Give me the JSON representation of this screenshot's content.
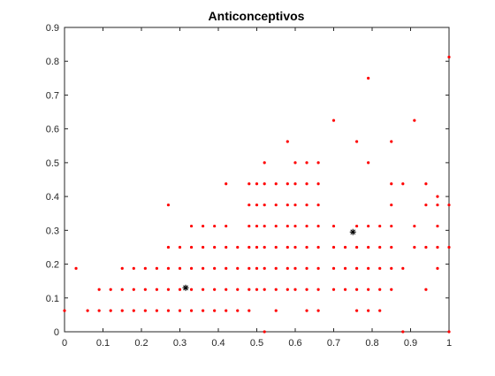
{
  "chart_data": {
    "type": "scatter",
    "title": "Anticonceptivos",
    "xlabel": "",
    "ylabel": "",
    "xlim": [
      0,
      1
    ],
    "ylim": [
      0,
      0.9
    ],
    "xticks": [
      "0",
      "0.1",
      "0.2",
      "0.3",
      "0.4",
      "0.5",
      "0.6",
      "0.7",
      "0.8",
      "0.9",
      "1"
    ],
    "yticks": [
      "0",
      "0.1",
      "0.2",
      "0.3",
      "0.4",
      "0.5",
      "0.6",
      "0.7",
      "0.8",
      "0.9"
    ],
    "grid": false,
    "point_color": "#ff0000",
    "centroid_color": "#000000",
    "series": [
      {
        "marker": "dot",
        "points": [
          [
            0.0,
            0.0625
          ],
          [
            0.03,
            0.1875
          ],
          [
            0.06,
            0.0625
          ],
          [
            0.09,
            0.0625
          ],
          [
            0.09,
            0.125
          ],
          [
            0.12,
            0.0625
          ],
          [
            0.12,
            0.125
          ],
          [
            0.15,
            0.0625
          ],
          [
            0.15,
            0.125
          ],
          [
            0.15,
            0.1875
          ],
          [
            0.18,
            0.0625
          ],
          [
            0.18,
            0.125
          ],
          [
            0.18,
            0.1875
          ],
          [
            0.21,
            0.0625
          ],
          [
            0.21,
            0.125
          ],
          [
            0.21,
            0.1875
          ],
          [
            0.24,
            0.0625
          ],
          [
            0.24,
            0.125
          ],
          [
            0.24,
            0.1875
          ],
          [
            0.27,
            0.0625
          ],
          [
            0.27,
            0.125
          ],
          [
            0.27,
            0.1875
          ],
          [
            0.27,
            0.25
          ],
          [
            0.27,
            0.375
          ],
          [
            0.3,
            0.0625
          ],
          [
            0.3,
            0.125
          ],
          [
            0.3,
            0.1875
          ],
          [
            0.3,
            0.25
          ],
          [
            0.33,
            0.0625
          ],
          [
            0.33,
            0.125
          ],
          [
            0.33,
            0.1875
          ],
          [
            0.33,
            0.25
          ],
          [
            0.33,
            0.3125
          ],
          [
            0.36,
            0.0625
          ],
          [
            0.36,
            0.125
          ],
          [
            0.36,
            0.1875
          ],
          [
            0.36,
            0.25
          ],
          [
            0.36,
            0.3125
          ],
          [
            0.39,
            0.0625
          ],
          [
            0.39,
            0.125
          ],
          [
            0.39,
            0.1875
          ],
          [
            0.39,
            0.25
          ],
          [
            0.39,
            0.3125
          ],
          [
            0.42,
            0.0625
          ],
          [
            0.42,
            0.125
          ],
          [
            0.42,
            0.1875
          ],
          [
            0.42,
            0.25
          ],
          [
            0.42,
            0.3125
          ],
          [
            0.42,
            0.4375
          ],
          [
            0.45,
            0.0625
          ],
          [
            0.45,
            0.125
          ],
          [
            0.45,
            0.1875
          ],
          [
            0.45,
            0.25
          ],
          [
            0.48,
            0.0625
          ],
          [
            0.48,
            0.125
          ],
          [
            0.48,
            0.1875
          ],
          [
            0.48,
            0.25
          ],
          [
            0.48,
            0.3125
          ],
          [
            0.48,
            0.375
          ],
          [
            0.48,
            0.4375
          ],
          [
            0.5,
            0.125
          ],
          [
            0.5,
            0.1875
          ],
          [
            0.5,
            0.25
          ],
          [
            0.5,
            0.3125
          ],
          [
            0.5,
            0.375
          ],
          [
            0.5,
            0.4375
          ],
          [
            0.52,
            0.0
          ],
          [
            0.52,
            0.125
          ],
          [
            0.52,
            0.1875
          ],
          [
            0.52,
            0.25
          ],
          [
            0.52,
            0.3125
          ],
          [
            0.52,
            0.375
          ],
          [
            0.52,
            0.4375
          ],
          [
            0.52,
            0.5
          ],
          [
            0.55,
            0.0625
          ],
          [
            0.55,
            0.125
          ],
          [
            0.55,
            0.1875
          ],
          [
            0.55,
            0.25
          ],
          [
            0.55,
            0.3125
          ],
          [
            0.55,
            0.375
          ],
          [
            0.55,
            0.4375
          ],
          [
            0.58,
            0.125
          ],
          [
            0.58,
            0.1875
          ],
          [
            0.58,
            0.25
          ],
          [
            0.58,
            0.3125
          ],
          [
            0.58,
            0.375
          ],
          [
            0.58,
            0.4375
          ],
          [
            0.58,
            0.5625
          ],
          [
            0.6,
            0.125
          ],
          [
            0.6,
            0.1875
          ],
          [
            0.6,
            0.25
          ],
          [
            0.6,
            0.3125
          ],
          [
            0.6,
            0.375
          ],
          [
            0.6,
            0.4375
          ],
          [
            0.6,
            0.5
          ],
          [
            0.63,
            0.0625
          ],
          [
            0.63,
            0.125
          ],
          [
            0.63,
            0.1875
          ],
          [
            0.63,
            0.25
          ],
          [
            0.63,
            0.3125
          ],
          [
            0.63,
            0.375
          ],
          [
            0.63,
            0.4375
          ],
          [
            0.63,
            0.5
          ],
          [
            0.66,
            0.0625
          ],
          [
            0.66,
            0.125
          ],
          [
            0.66,
            0.1875
          ],
          [
            0.66,
            0.25
          ],
          [
            0.66,
            0.3125
          ],
          [
            0.66,
            0.375
          ],
          [
            0.66,
            0.4375
          ],
          [
            0.66,
            0.5
          ],
          [
            0.7,
            0.125
          ],
          [
            0.7,
            0.1875
          ],
          [
            0.7,
            0.25
          ],
          [
            0.7,
            0.3125
          ],
          [
            0.7,
            0.625
          ],
          [
            0.73,
            0.125
          ],
          [
            0.73,
            0.1875
          ],
          [
            0.73,
            0.25
          ],
          [
            0.76,
            0.0625
          ],
          [
            0.76,
            0.125
          ],
          [
            0.76,
            0.1875
          ],
          [
            0.76,
            0.25
          ],
          [
            0.76,
            0.3125
          ],
          [
            0.76,
            0.5625
          ],
          [
            0.79,
            0.0625
          ],
          [
            0.79,
            0.125
          ],
          [
            0.79,
            0.1875
          ],
          [
            0.79,
            0.25
          ],
          [
            0.79,
            0.3125
          ],
          [
            0.79,
            0.5
          ],
          [
            0.79,
            0.75
          ],
          [
            0.82,
            0.0625
          ],
          [
            0.82,
            0.125
          ],
          [
            0.82,
            0.1875
          ],
          [
            0.82,
            0.25
          ],
          [
            0.82,
            0.3125
          ],
          [
            0.85,
            0.125
          ],
          [
            0.85,
            0.1875
          ],
          [
            0.85,
            0.25
          ],
          [
            0.85,
            0.3125
          ],
          [
            0.85,
            0.375
          ],
          [
            0.85,
            0.4375
          ],
          [
            0.85,
            0.5625
          ],
          [
            0.88,
            0.1875
          ],
          [
            0.88,
            0.4375
          ],
          [
            0.88,
            0.0
          ],
          [
            0.91,
            0.25
          ],
          [
            0.91,
            0.3125
          ],
          [
            0.91,
            0.625
          ],
          [
            0.94,
            0.125
          ],
          [
            0.94,
            0.25
          ],
          [
            0.94,
            0.375
          ],
          [
            0.94,
            0.4375
          ],
          [
            0.97,
            0.1875
          ],
          [
            0.97,
            0.25
          ],
          [
            0.97,
            0.3125
          ],
          [
            0.97,
            0.375
          ],
          [
            0.97,
            0.4
          ],
          [
            1.0,
            0.0
          ],
          [
            1.0,
            0.25
          ],
          [
            1.0,
            0.375
          ],
          [
            1.0,
            0.8125
          ]
        ]
      },
      {
        "marker": "asterisk",
        "points": [
          [
            0.315,
            0.13
          ],
          [
            0.75,
            0.295
          ]
        ]
      }
    ]
  }
}
